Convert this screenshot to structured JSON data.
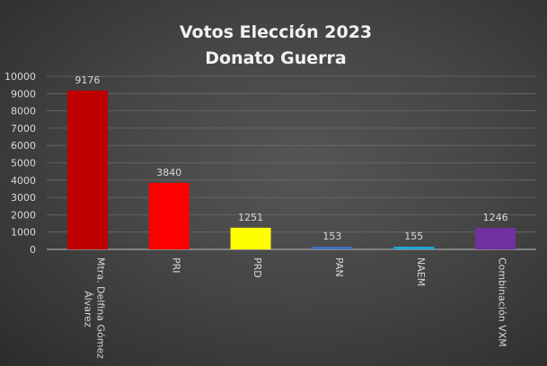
{
  "chart_data": {
    "type": "bar",
    "title": [
      "Votos Elección 2023",
      "Donato Guerra"
    ],
    "categories": [
      [
        "Mtra. Delfina Gómez",
        "Álvarez"
      ],
      [
        "PRI"
      ],
      [
        "PRD"
      ],
      [
        "PAN"
      ],
      [
        "NAEM"
      ],
      [
        "Combinación VXM"
      ]
    ],
    "values": [
      9176,
      3840,
      1251,
      153,
      155,
      1246
    ],
    "colors": [
      "#c00000",
      "#ff0000",
      "#ffff00",
      "#4472c4",
      "#1fa7d8",
      "#7030a0"
    ],
    "ylim": [
      0,
      10000
    ],
    "yticks": [
      0,
      1000,
      2000,
      3000,
      4000,
      5000,
      6000,
      7000,
      8000,
      9000,
      10000
    ],
    "grid": true,
    "data_labels": true,
    "xlabel": "",
    "ylabel": ""
  }
}
